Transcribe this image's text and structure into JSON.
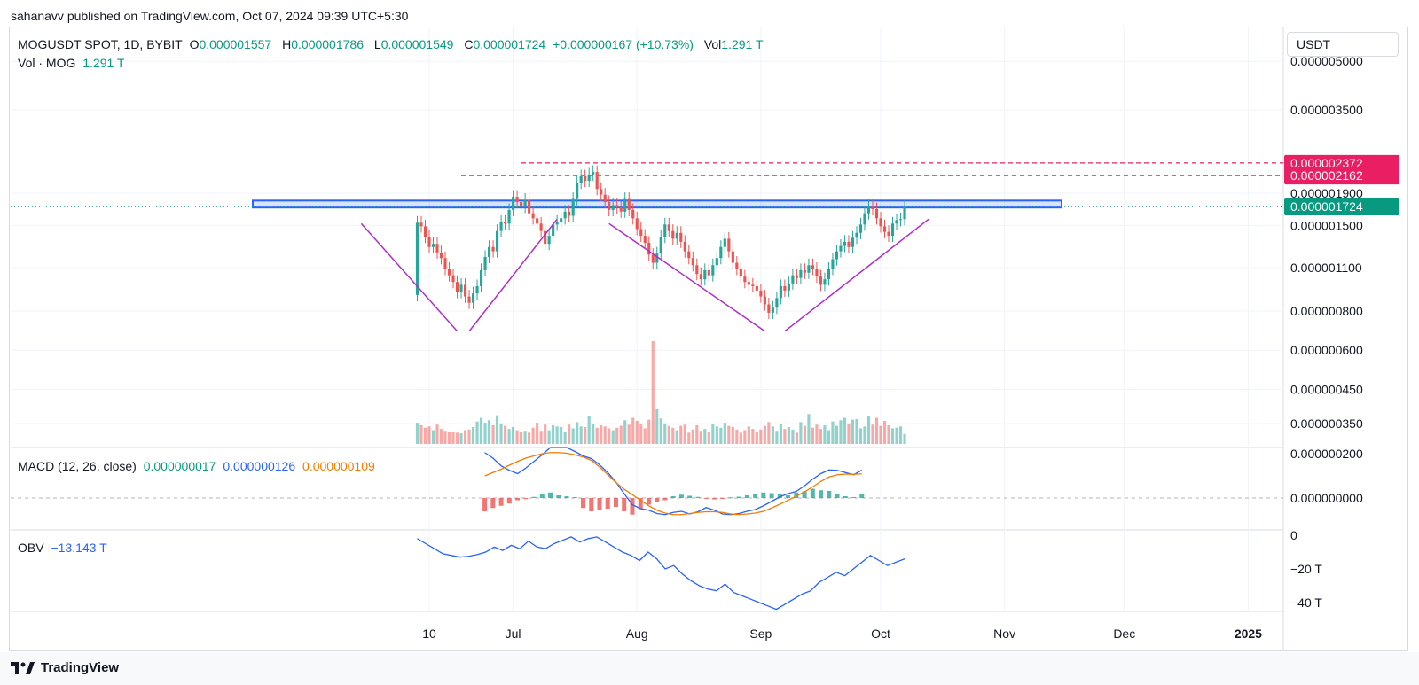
{
  "header": {
    "published": "sahanavv published on TradingView.com, Oct 07, 2024 09:39 UTC+5:30"
  },
  "symbol": {
    "name": "MOGUSDT SPOT, 1D, BYBIT",
    "o_label": "O",
    "o": "0.000001557",
    "h_label": "H",
    "h": "0.000001786",
    "l_label": "L",
    "l": "0.000001549",
    "c_label": "C",
    "c": "0.000001724",
    "change": "+0.000000167 (+10.73%)",
    "vol_label": "Vol",
    "vol": "1.291 T"
  },
  "volume_legend": {
    "label": "Vol · MOG",
    "value": "1.291 T"
  },
  "macd_legend": {
    "label": "MACD (12, 26, close)",
    "hist": "0.000000017",
    "macd": "0.000000126",
    "signal": "0.000000109"
  },
  "obv_legend": {
    "label": "OBV",
    "value": "−13.143 T"
  },
  "currency_button": "USDT",
  "footer": {
    "brand": "TradingView"
  },
  "colors": {
    "up": "#26a69a",
    "down": "#ef5350",
    "resistance": "#e91e63",
    "zone": "#2962ff",
    "pattern": "#b02ec9",
    "macd": "#2962ff",
    "signal": "#f57c00"
  },
  "chart_data": [
    {
      "type": "candlestick",
      "title": "MOGUSDT SPOT, 1D, BYBIT",
      "y_scale": "log",
      "y_ticks": [
        "0.000005000",
        "0.000003500",
        "0.000001900",
        "0.000001500",
        "0.000001100",
        "0.000000800",
        "0.000000600",
        "0.000000450",
        "0.000000350"
      ],
      "x_ticks": [
        "10",
        "Jul",
        "Aug",
        "Sep",
        "Oct",
        "Nov",
        "Dec",
        "2025"
      ],
      "price_labels": [
        {
          "value": "0.000002372",
          "kind": "resistance"
        },
        {
          "value": "0.000002162",
          "kind": "resistance"
        },
        {
          "value": "0.000001724",
          "kind": "last"
        }
      ],
      "resistance_levels": [
        2.372e-06,
        2.162e-06
      ],
      "supply_zone": [
        1.71e-06,
        1.8e-06
      ],
      "patterns": [
        {
          "name": "left-v",
          "points": [
            [
              "2024-05-24",
              1.52e-06
            ],
            [
              "2024-06-17",
              6.9e-07
            ],
            [
              "2024-06-20",
              6.9e-07
            ],
            [
              "2024-07-12",
              1.57e-06
            ]
          ]
        },
        {
          "name": "right-v",
          "points": [
            [
              "2024-07-25",
              1.52e-06
            ],
            [
              "2024-09-02",
              6.9e-07
            ],
            [
              "2024-09-07",
              6.9e-07
            ],
            [
              "2024-10-13",
              1.57e-06
            ]
          ]
        }
      ],
      "x": [
        "2024-06-07",
        "2024-06-08",
        "2024-06-09",
        "2024-06-10",
        "2024-06-11",
        "2024-06-12",
        "2024-06-13",
        "2024-06-14",
        "2024-06-15",
        "2024-06-16",
        "2024-06-17",
        "2024-06-18",
        "2024-06-19",
        "2024-06-20",
        "2024-06-21",
        "2024-06-22",
        "2024-06-23",
        "2024-06-24",
        "2024-06-25",
        "2024-06-26",
        "2024-06-27",
        "2024-06-28",
        "2024-06-29",
        "2024-06-30",
        "2024-07-01",
        "2024-07-02",
        "2024-07-03",
        "2024-07-04",
        "2024-07-05",
        "2024-07-06",
        "2024-07-07",
        "2024-07-08",
        "2024-07-09",
        "2024-07-10",
        "2024-07-11",
        "2024-07-12",
        "2024-07-13",
        "2024-07-14",
        "2024-07-15",
        "2024-07-16",
        "2024-07-17",
        "2024-07-18",
        "2024-07-19",
        "2024-07-20",
        "2024-07-21",
        "2024-07-22",
        "2024-07-23",
        "2024-07-24",
        "2024-07-25",
        "2024-07-26",
        "2024-07-27",
        "2024-07-28",
        "2024-07-29",
        "2024-07-30",
        "2024-07-31",
        "2024-08-01",
        "2024-08-02",
        "2024-08-03",
        "2024-08-04",
        "2024-08-05",
        "2024-08-06",
        "2024-08-07",
        "2024-08-08",
        "2024-08-09",
        "2024-08-10",
        "2024-08-11",
        "2024-08-12",
        "2024-08-13",
        "2024-08-14",
        "2024-08-15",
        "2024-08-16",
        "2024-08-17",
        "2024-08-18",
        "2024-08-19",
        "2024-08-20",
        "2024-08-21",
        "2024-08-22",
        "2024-08-23",
        "2024-08-24",
        "2024-08-25",
        "2024-08-26",
        "2024-08-27",
        "2024-08-28",
        "2024-08-29",
        "2024-08-30",
        "2024-08-31",
        "2024-09-01",
        "2024-09-02",
        "2024-09-03",
        "2024-09-04",
        "2024-09-05",
        "2024-09-06",
        "2024-09-07",
        "2024-09-08",
        "2024-09-09",
        "2024-09-10",
        "2024-09-11",
        "2024-09-12",
        "2024-09-13",
        "2024-09-14",
        "2024-09-15",
        "2024-09-16",
        "2024-09-17",
        "2024-09-18",
        "2024-09-19",
        "2024-09-20",
        "2024-09-21",
        "2024-09-22",
        "2024-09-23",
        "2024-09-24",
        "2024-09-25",
        "2024-09-26",
        "2024-09-27",
        "2024-09-28",
        "2024-09-29",
        "2024-09-30",
        "2024-10-01",
        "2024-10-02",
        "2024-10-03",
        "2024-10-04",
        "2024-10-05",
        "2024-10-06",
        "2024-10-07"
      ],
      "close": [
        1.53e-06,
        1.49e-06,
        1.38e-06,
        1.28e-06,
        1.31e-06,
        1.23e-06,
        1.18e-06,
        1.09e-06,
        1.04e-06,
        9.9e-07,
        9.2e-07,
        9.7e-07,
        8.9e-07,
        8.5e-07,
        9.1e-07,
        9.6e-07,
        1.08e-06,
        1.19e-06,
        1.28e-06,
        1.24e-06,
        1.44e-06,
        1.54e-06,
        1.52e-06,
        1.68e-06,
        1.85e-06,
        1.78e-06,
        1.72e-06,
        1.81e-06,
        1.64e-06,
        1.58e-06,
        1.52e-06,
        1.44e-06,
        1.31e-06,
        1.39e-06,
        1.51e-06,
        1.54e-06,
        1.58e-06,
        1.66e-06,
        1.61e-06,
        1.82e-06,
        2.05e-06,
        2.15e-06,
        2.08e-06,
        2.18e-06,
        2.22e-06,
        1.96e-06,
        1.88e-06,
        1.78e-06,
        1.68e-06,
        1.74e-06,
        1.71e-06,
        1.66e-06,
        1.82e-06,
        1.68e-06,
        1.58e-06,
        1.46e-06,
        1.39e-06,
        1.32e-06,
        1.21e-06,
        1.14e-06,
        1.22e-06,
        1.38e-06,
        1.51e-06,
        1.44e-06,
        1.36e-06,
        1.42e-06,
        1.33e-06,
        1.24e-06,
        1.18e-06,
        1.12e-06,
        1.05e-06,
        1.01e-06,
        1.08e-06,
        1.04e-06,
        1.12e-06,
        1.18e-06,
        1.28e-06,
        1.36e-06,
        1.24e-06,
        1.14e-06,
        1.09e-06,
        1.03e-06,
        9.9e-07,
        9.7e-07,
        9.6e-07,
        9.3e-07,
        8.9e-07,
        8.4e-07,
        7.9e-07,
        8.2e-07,
        8.8e-07,
        9.6e-07,
        9.3e-07,
        9.8e-07,
        1.04e-06,
        1.02e-06,
        1.08e-06,
        1.06e-06,
        1.12e-06,
        1.09e-06,
        1.03e-06,
        9.7e-07,
        1.01e-06,
        1.09e-06,
        1.17e-06,
        1.24e-06,
        1.29e-06,
        1.33e-06,
        1.28e-06,
        1.37e-06,
        1.42e-06,
        1.51e-06,
        1.64e-06,
        1.73e-06,
        1.69e-06,
        1.58e-06,
        1.49e-06,
        1.43e-06,
        1.39e-06,
        1.52e-06,
        1.56e-06,
        1.57e-06,
        1.72e-06
      ],
      "open_high_low_note": "opens equal previous close; highs/lows estimated",
      "volume": [
        3.4,
        3.0,
        2.6,
        2.8,
        2.2,
        3.1,
        2.4,
        2.1,
        2.0,
        1.9,
        1.8,
        1.7,
        2.2,
        2.3,
        2.7,
        3.6,
        4.2,
        3.4,
        3.8,
        3.0,
        4.6,
        3.3,
        2.9,
        2.4,
        2.7,
        2.2,
        1.9,
        2.1,
        1.8,
        2.6,
        3.4,
        2.1,
        3.1,
        2.2,
        3.0,
        2.8,
        2.7,
        2.0,
        3.1,
        2.5,
        3.5,
        2.8,
        2.7,
        4.5,
        3.2,
        2.6,
        3.0,
        2.8,
        2.5,
        2.2,
        2.6,
        2.9,
        3.8,
        3.1,
        4.2,
        3.7,
        3.2,
        2.5,
        3.9,
        16.5,
        5.7,
        4.1,
        3.3,
        2.9,
        2.6,
        2.2,
        2.9,
        3.1,
        1.8,
        2.3,
        3.0,
        2.1,
        2.4,
        1.9,
        3.2,
        2.8,
        2.6,
        3.4,
        2.9,
        2.7,
        2.3,
        1.8,
        2.2,
        2.8,
        2.4,
        2.0,
        2.3,
        2.9,
        3.5,
        2.8,
        2.1,
        3.2,
        2.4,
        2.7,
        2.3,
        1.8,
        3.5,
        2.9,
        4.8,
        2.6,
        3.1,
        2.4,
        3.0,
        2.2,
        3.6,
        2.9,
        3.8,
        4.2,
        3.3,
        3.9,
        4.0,
        2.5,
        2.8,
        4.4,
        3.1,
        4.2,
        2.9,
        3.7,
        3.0,
        2.5,
        2.6,
        2.8,
        1.6
      ]
    },
    {
      "type": "line",
      "title": "MACD (12, 26, close)",
      "y_ticks": [
        "0.000000200",
        "0.000000000"
      ],
      "series": [
        {
          "name": "MACD",
          "values": [
            2.05e-07,
            1.8e-07,
            1.45e-07,
            1.25e-07,
            1.1e-07,
            1.35e-07,
            1.65e-07,
            1.95e-07,
            2.28e-07,
            2.43e-07,
            2.32e-07,
            2.1e-07,
            1.9e-07,
            1.78e-07,
            1.5e-07,
            1.15e-07,
            7.2e-08,
            2e-08,
            -3e-08,
            -4.8e-08,
            -5.5e-08,
            -7e-08,
            -7.5e-08,
            -6.5e-08,
            -6e-08,
            -7.2e-08,
            -6.2e-08,
            -4.3e-08,
            -5.5e-08,
            -7.2e-08,
            -7.5e-08,
            -7e-08,
            -6e-08,
            -5.2e-08,
            -3.5e-08,
            -1.5e-08,
            5e-09,
            2e-08,
            3e-08,
            5.5e-08,
            8.5e-08,
            1.1e-07,
            1.27e-07,
            1.25e-07,
            1.15e-07,
            1.05e-07,
            1.26e-07
          ]
        },
        {
          "name": "Signal",
          "values": [
            1e-07,
            1.15e-07,
            1.3e-07,
            1.48e-07,
            1.65e-07,
            1.8e-07,
            1.9e-07,
            2e-07,
            2.05e-07,
            2.05e-07,
            2.02e-07,
            1.95e-07,
            1.85e-07,
            1.7e-07,
            1.4e-07,
            1.05e-07,
            7e-08,
            4e-08,
            1.5e-08,
            -1e-08,
            -3.5e-08,
            -5.5e-08,
            -6.8e-08,
            -7.5e-08,
            -7.5e-08,
            -7e-08,
            -6.5e-08,
            -6.2e-08,
            -6.2e-08,
            -6.5e-08,
            -7.2e-08,
            -7.5e-08,
            -7.2e-08,
            -6.8e-08,
            -6e-08,
            -4.5e-08,
            -2.8e-08,
            -1e-08,
            8e-09,
            2.8e-08,
            5e-08,
            7.5e-08,
            9.5e-08,
            1.05e-07,
            1.08e-07,
            1.07e-07,
            1.09e-07
          ]
        },
        {
          "name": "Histogram",
          "values": [
            -6e-08,
            -4.5e-08,
            -3.5e-08,
            -2.5e-08,
            -1e-08,
            -5e-09,
            5e-09,
            2e-08,
            2.5e-08,
            1.2e-08,
            8e-09,
            4e-09,
            -4.5e-08,
            -6e-08,
            -5.5e-08,
            -4.8e-08,
            -4e-08,
            -6e-08,
            -7.5e-08,
            -5e-08,
            -3e-08,
            -2e-08,
            -1e-08,
            8e-09,
            1.5e-08,
            1e-08,
            5e-09,
            -3e-09,
            -6e-09,
            -4e-09,
            3e-09,
            6e-09,
            1.2e-08,
            1.8e-08,
            2.5e-08,
            2.2e-08,
            1.8e-08,
            1.2e-08,
            2.5e-08,
            3e-08,
            4.2e-08,
            3.5e-08,
            3.2e-08,
            2e-08,
            8e-09,
            4e-09,
            1.7e-08
          ]
        }
      ]
    },
    {
      "type": "line",
      "title": "OBV",
      "y_ticks": [
        "0",
        "−20 T",
        "−40 T"
      ],
      "series": [
        {
          "name": "OBV",
          "values": [
            -2,
            -5,
            -8,
            -11,
            -12,
            -13,
            -12.5,
            -11.5,
            -10,
            -7,
            -9,
            -6,
            -8,
            -3.5,
            -7,
            -8,
            -5,
            -3,
            -1,
            -4,
            -2,
            -1,
            -4,
            -7,
            -10,
            -12,
            -15,
            -10,
            -14,
            -20,
            -18,
            -23,
            -27,
            -30,
            -32,
            -33,
            -29,
            -34,
            -36,
            -38,
            -40,
            -42,
            -44,
            -41,
            -38,
            -35,
            -33,
            -28,
            -25,
            -22,
            -24,
            -20,
            -16,
            -12,
            -15,
            -18,
            -16,
            -14
          ]
        }
      ]
    }
  ]
}
